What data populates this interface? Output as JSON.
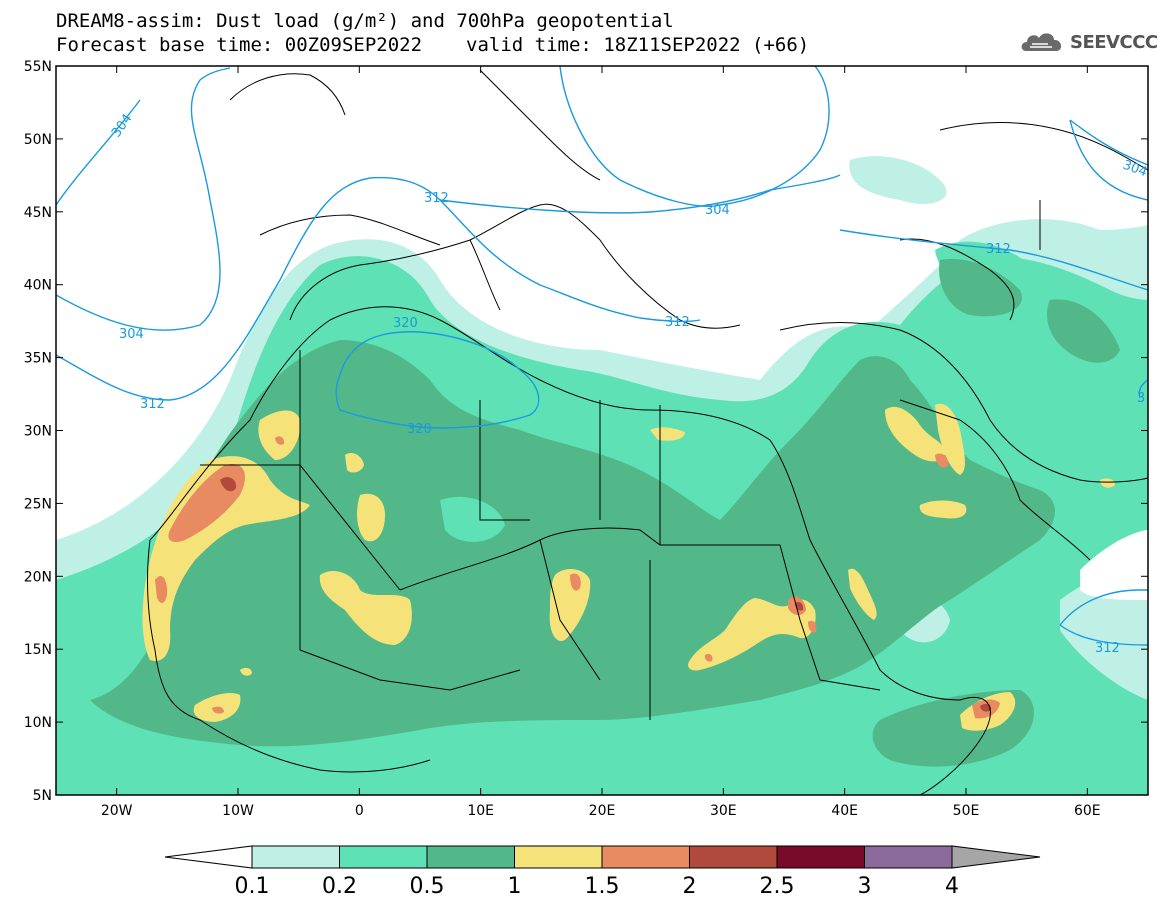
{
  "header": {
    "title_line1": "DREAM8-assim: Dust load (g/m²) and 700hPa geopotential",
    "base_time": "Forecast base time: 00Z09SEP2022",
    "valid_time": "valid time: 18Z11SEP2022 (+66)"
  },
  "logo": {
    "text": "SEEVCCC",
    "icon": "cloud-icon"
  },
  "map": {
    "lat_labels": [
      "55N",
      "50N",
      "45N",
      "40N",
      "35N",
      "30N",
      "25N",
      "20N",
      "15N",
      "10N",
      "5N"
    ],
    "lon_labels": [
      "20W",
      "10W",
      "0",
      "10E",
      "20E",
      "30E",
      "40E",
      "50E",
      "60E"
    ],
    "lat_range": [
      5,
      55
    ],
    "lon_range": [
      -25,
      65
    ],
    "contour_labels": [
      "304",
      "304",
      "312",
      "312",
      "320",
      "320",
      "312",
      "312",
      "304",
      "304",
      "312",
      "312",
      "3"
    ]
  },
  "colorbar": {
    "levels": [
      "0.1",
      "0.2",
      "0.5",
      "1",
      "1.5",
      "2",
      "2.5",
      "3",
      "4"
    ],
    "colors": [
      "#ffffff",
      "#bff0e6",
      "#5ee1b4",
      "#52b88a",
      "#f5e37a",
      "#e88a62",
      "#b1493c",
      "#7a0a2a",
      "#8c6a9c",
      "#a6a6a6"
    ]
  },
  "colors": {
    "c01": "#bff0e6",
    "c02": "#5ee1b4",
    "c05": "#52b88a",
    "c10": "#f5e37a",
    "c15": "#e88a62",
    "c20": "#b1493c",
    "contour": "#1a9ae0"
  }
}
